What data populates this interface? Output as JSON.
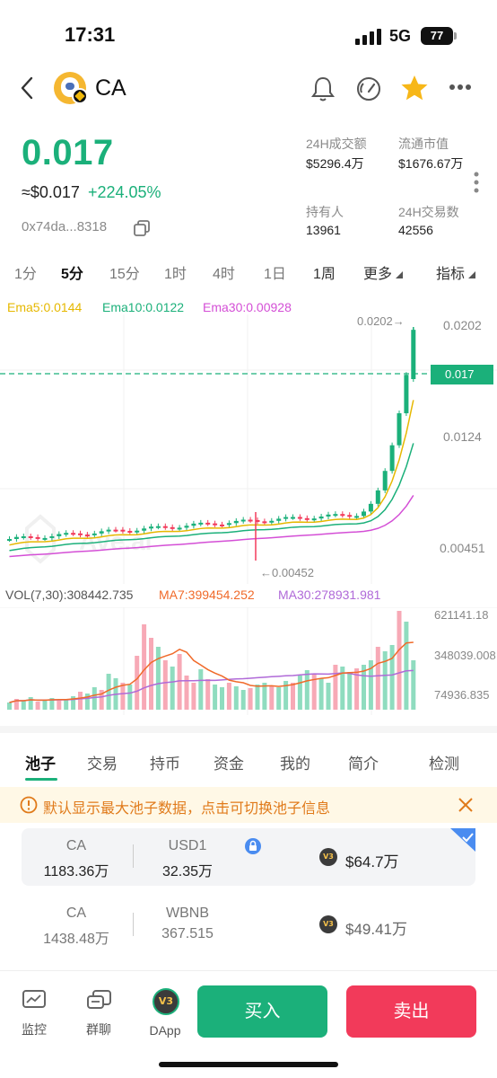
{
  "status_bar": {
    "time": "17:31",
    "network": "5G",
    "battery": "77"
  },
  "header": {
    "token_name": "CA",
    "icons": [
      "back-icon",
      "bell-icon",
      "gauge-icon",
      "star-icon",
      "more-icon"
    ]
  },
  "token": {
    "price": "0.017",
    "usd_price": "≈$0.017",
    "change": "+224.05%",
    "address": "0x74da...8318"
  },
  "stats": [
    {
      "label": "24H成交额",
      "value": "$5296.4万"
    },
    {
      "label": "流通市值",
      "value": "$1676.67万"
    },
    {
      "label": "持有人",
      "value": "13961"
    },
    {
      "label": "24H交易数",
      "value": "42556"
    }
  ],
  "timeframes": [
    "1分",
    "5分",
    "15分",
    "1时",
    "4时",
    "1日",
    "1周",
    "更多",
    "指标"
  ],
  "active_timeframe": "5分",
  "chart_legend": {
    "ema5": "Ema5:0.0144",
    "ema10": "Ema10:0.0122",
    "ema30": "Ema30:0.00928"
  },
  "chart_axis": {
    "high_label": "0.0202→",
    "low_label": "←0.00452",
    "y_ticks": [
      "0.0202",
      "0.0124",
      "0.00451"
    ],
    "current_price": "0.017"
  },
  "volume_legend": {
    "vol": "VOL(7,30):308442.735",
    "ma7": "MA7:399454.252",
    "ma30": "MA30:278931.981"
  },
  "volume_axis": [
    "621141.18",
    "348039.008",
    "74936.835"
  ],
  "colors": {
    "up": "#1bb07a",
    "down": "#f23a5a",
    "ema5": "#e6b800",
    "ema10": "#1bb07a",
    "ema30": "#d44fd6",
    "ma7": "#f06a2a",
    "ma30": "#b06ad8"
  },
  "bottom_tabs": [
    "池子",
    "交易",
    "持币",
    "资金",
    "我的",
    "简介",
    "检测"
  ],
  "active_tab": "池子",
  "notice": "默认显示最大池子数据，点击可切换池子信息",
  "pools": [
    {
      "base_sym": "CA",
      "base_amt": "1183.36万",
      "quote_sym": "USD1",
      "quote_amt": "32.35万",
      "liquidity": "$64.7万",
      "badge": "V3",
      "selected": true
    },
    {
      "base_sym": "CA",
      "base_amt": "1438.48万",
      "quote_sym": "WBNB",
      "quote_amt": "367.515",
      "liquidity": "$49.41万",
      "badge": "V3",
      "selected": false
    }
  ],
  "bottom_nav": [
    {
      "label": "监控",
      "icon": "monitor-icon"
    },
    {
      "label": "群聊",
      "icon": "chat-icon"
    },
    {
      "label": "DApp",
      "icon": "dapp-icon"
    }
  ],
  "actions": {
    "buy": "买入",
    "sell": "卖出"
  }
}
